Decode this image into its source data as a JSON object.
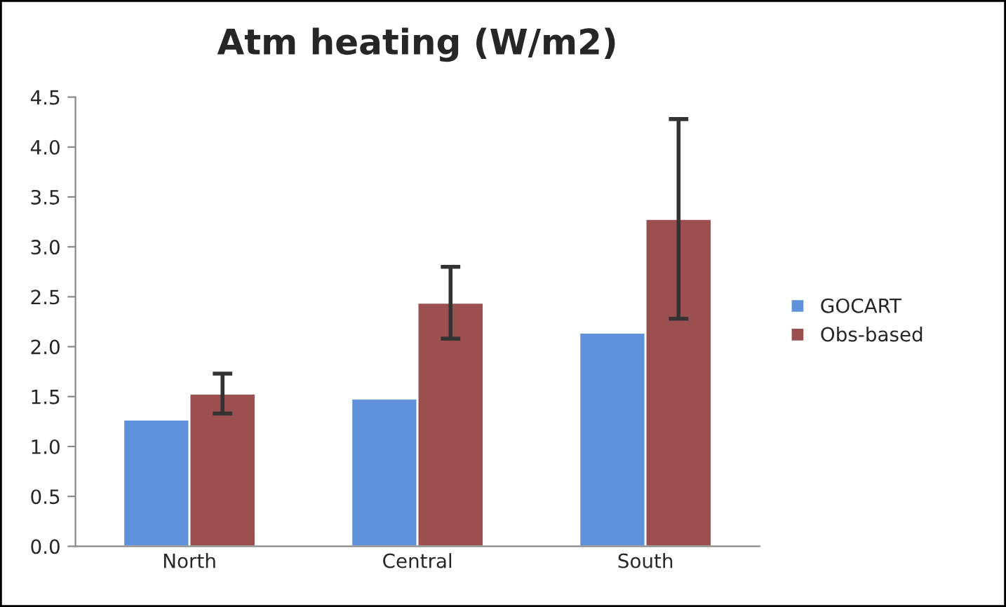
{
  "chart_data": {
    "type": "bar",
    "title": "Atm heating (W/m2)",
    "categories": [
      "North",
      "Central",
      "South"
    ],
    "series": [
      {
        "name": "GOCART",
        "color": "#5f92db",
        "values": [
          1.27,
          1.48,
          2.14
        ]
      },
      {
        "name": "Obs-based",
        "color": "#9c4f4f",
        "values": [
          1.53,
          2.44,
          3.28
        ],
        "errors": [
          0.2,
          0.36,
          1.0
        ]
      }
    ],
    "ylim": [
      0,
      4.5
    ],
    "yticks": [
      {
        "value": 0,
        "label": "0.0"
      },
      {
        "value": 0.5,
        "label": "0.5"
      },
      {
        "value": 1,
        "label": "1.0"
      },
      {
        "value": 1.5,
        "label": "1.5"
      },
      {
        "value": 2,
        "label": "2.0"
      },
      {
        "value": 2.5,
        "label": "2.5"
      },
      {
        "value": 3,
        "label": "3.0"
      },
      {
        "value": 3.5,
        "label": "3.5"
      },
      {
        "value": 4,
        "label": "4.0"
      },
      {
        "value": 4.5,
        "label": "4.5"
      }
    ],
    "grid": false,
    "legend": "right"
  }
}
